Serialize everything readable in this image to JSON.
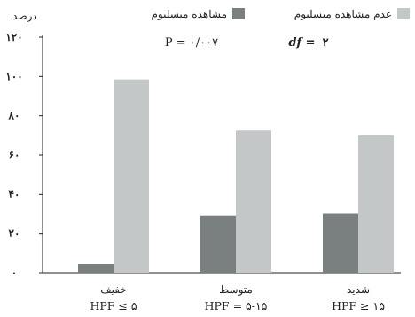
{
  "chart_data": {
    "type": "bar",
    "ylabel": "درصد",
    "ylim": [
      0,
      120
    ],
    "yticks": [
      {
        "value": 0,
        "label": "۰"
      },
      {
        "value": 20,
        "label": "۲۰"
      },
      {
        "value": 40,
        "label": "۴۰"
      },
      {
        "value": 60,
        "label": "۶۰"
      },
      {
        "value": 80,
        "label": "۸۰"
      },
      {
        "value": 100,
        "label": "۱۰۰"
      },
      {
        "value": 120,
        "label": "۱۲۰"
      }
    ],
    "categories": [
      {
        "name": "خفیف",
        "sub": "HPF ≤ ۵"
      },
      {
        "name": "متوسط",
        "sub": "HPF = ۵-۱۵"
      },
      {
        "name": "شدید",
        "sub": "HPF ≥ ۱۵"
      }
    ],
    "series": [
      {
        "name": "مشاهده میسلیوم",
        "color": "#7a7f80",
        "values": [
          4.5,
          29,
          30
        ]
      },
      {
        "name": "عدم مشاهده میسلیوم",
        "color": "#c4c7c7",
        "values": [
          98.5,
          72.5,
          70
        ]
      }
    ],
    "annotations": {
      "p_value": "P = ۰/۰۰۷",
      "df_label": "df =",
      "df_value": "۲"
    },
    "grid": false,
    "legend": "top"
  }
}
